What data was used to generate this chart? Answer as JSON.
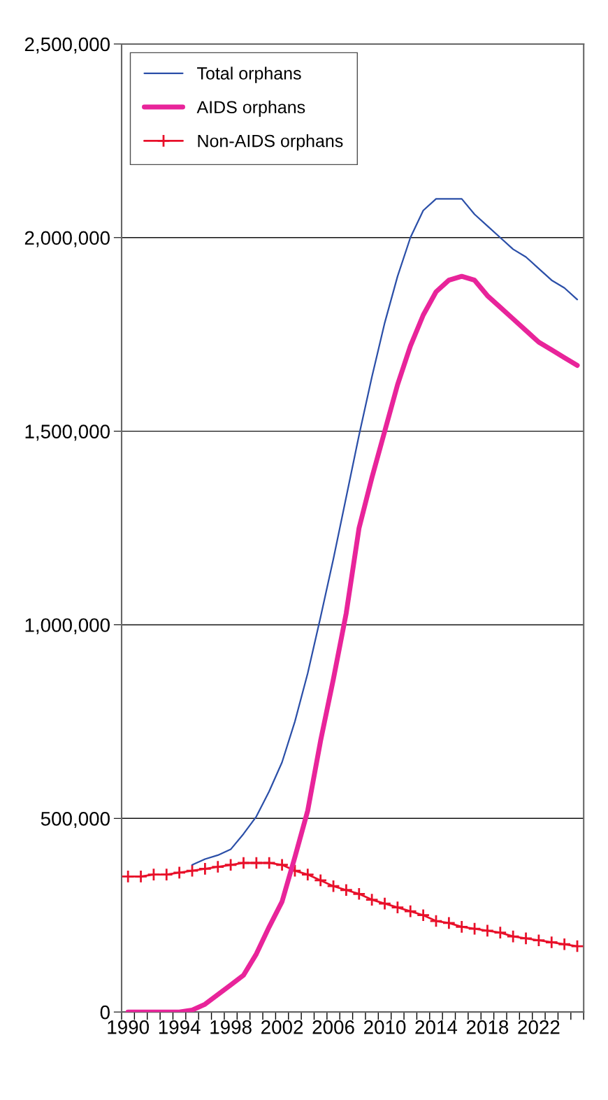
{
  "chart_data": {
    "type": "line",
    "categories": [
      "1990",
      null,
      null,
      null,
      "1994",
      null,
      null,
      null,
      "1998",
      null,
      null,
      null,
      "2002",
      null,
      null,
      null,
      "2006",
      null,
      null,
      null,
      "2010",
      null,
      null,
      null,
      "2014",
      null,
      null,
      null,
      "2018",
      null,
      null,
      null,
      "2022",
      null,
      null,
      null
    ],
    "series": [
      {
        "name": "Total orphans",
        "color": "#2b4fa8",
        "marker": "none",
        "values": [
          null,
          null,
          null,
          null,
          null,
          380000,
          395000,
          405000,
          420000,
          460000,
          505000,
          570000,
          645000,
          750000,
          875000,
          1020000,
          1170000,
          1330000,
          1490000,
          1640000,
          1780000,
          1900000,
          2000000,
          2070000,
          2100000,
          2100000,
          2100000,
          2060000,
          2030000,
          2000000,
          1970000,
          1950000,
          1920000,
          1890000,
          1870000,
          1840000
        ]
      },
      {
        "name": "AIDS orphans",
        "color": "#e8249a",
        "marker": "none",
        "values": [
          0,
          0,
          0,
          0,
          0,
          5000,
          20000,
          45000,
          70000,
          95000,
          150000,
          220000,
          285000,
          400000,
          520000,
          700000,
          860000,
          1030000,
          1250000,
          1380000,
          1500000,
          1620000,
          1720000,
          1800000,
          1860000,
          1890000,
          1900000,
          1890000,
          1850000,
          1820000,
          1790000,
          1760000,
          1730000,
          1710000,
          1690000,
          1670000
        ]
      },
      {
        "name": "Non-AIDS orphans",
        "color": "#e8102a",
        "marker": "cross",
        "values": [
          350000,
          350000,
          355000,
          355000,
          360000,
          365000,
          370000,
          375000,
          380000,
          385000,
          385000,
          385000,
          380000,
          365000,
          355000,
          340000,
          325000,
          315000,
          305000,
          290000,
          280000,
          270000,
          260000,
          250000,
          235000,
          230000,
          220000,
          215000,
          210000,
          205000,
          195000,
          190000,
          185000,
          180000,
          175000,
          170000
        ]
      }
    ],
    "ylim": [
      0,
      2500000
    ],
    "yticks": [
      0,
      {
        "value": 500000,
        "label": "500,000"
      },
      {
        "value": 1000000,
        "label": "1,000,000"
      },
      {
        "value": 1500000,
        "label": "1,500,000"
      },
      {
        "value": 2000000,
        "label": "2,000,000"
      },
      {
        "value": 2500000,
        "label": "2,500,000"
      }
    ],
    "grid": "y",
    "legend": "top left"
  }
}
